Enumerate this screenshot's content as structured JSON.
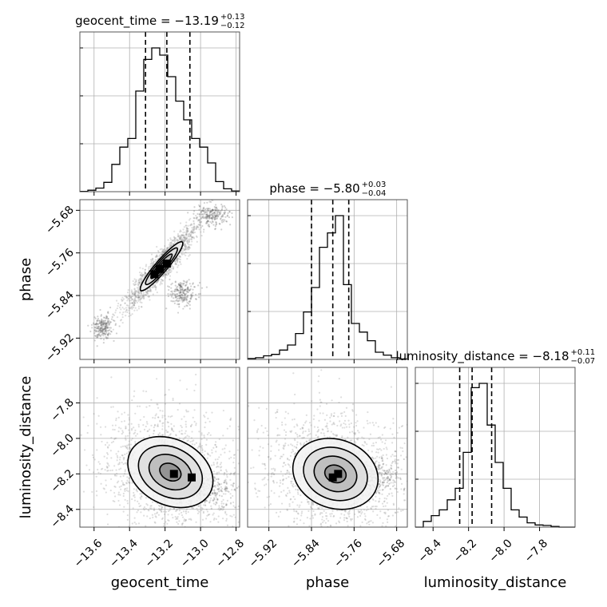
{
  "chart_data": [
    {
      "type": "histogram",
      "id": "geocent_time_hist",
      "parameter": "geocent_time",
      "title_label": "geocent_time = −13.19",
      "title_sup": "+0.13",
      "title_sub": "−0.12",
      "xlim": [
        -13.68,
        -12.78
      ],
      "median": -13.19,
      "quantiles": [
        -13.31,
        -13.06
      ],
      "bin_edges": [
        -13.68,
        -13.635,
        -13.59,
        -13.545,
        -13.5,
        -13.455,
        -13.41,
        -13.365,
        -13.32,
        -13.275,
        -13.23,
        -13.185,
        -13.14,
        -13.095,
        -13.05,
        -13.005,
        -12.96,
        -12.915,
        -12.87,
        -12.825,
        -12.78
      ],
      "counts": [
        0.2,
        1.0,
        2.5,
        6.5,
        19,
        31,
        37,
        70,
        92,
        100,
        95,
        80,
        63,
        50,
        37,
        31,
        20,
        7,
        2,
        0.5
      ]
    },
    {
      "type": "histogram",
      "id": "phase_hist",
      "parameter": "phase",
      "title_label": "phase = −5.80",
      "title_sup": "+0.03",
      "title_sub": "−0.04",
      "xlim": [
        -5.96,
        -5.66
      ],
      "median": -5.8,
      "quantiles": [
        -5.84,
        -5.77
      ],
      "bin_edges": [
        -5.96,
        -5.945,
        -5.93,
        -5.915,
        -5.9,
        -5.885,
        -5.87,
        -5.855,
        -5.84,
        -5.825,
        -5.81,
        -5.795,
        -5.78,
        -5.765,
        -5.75,
        -5.735,
        -5.72,
        -5.705,
        -5.69,
        -5.675,
        -5.66
      ],
      "counts": [
        0.6,
        1.2,
        2.5,
        3.5,
        6.5,
        10,
        18,
        33,
        50,
        78,
        88,
        100,
        52,
        25,
        19,
        13,
        5,
        3,
        1.2,
        0.3
      ]
    },
    {
      "type": "histogram",
      "id": "luminosity_distance_hist",
      "parameter": "luminosity_distance",
      "title_label": "luminosity_distance = −8.18",
      "title_sup": "+0.11",
      "title_sub": "−0.07",
      "xlim": [
        -8.5,
        -7.6
      ],
      "median": -8.18,
      "quantiles": [
        -8.25,
        -8.07
      ],
      "bin_edges": [
        -8.5,
        -8.455,
        -8.41,
        -8.365,
        -8.32,
        -8.275,
        -8.23,
        -8.185,
        -8.14,
        -8.095,
        -8.05,
        -8.005,
        -7.96,
        -7.915,
        -7.87,
        -7.825,
        -7.78,
        -7.735,
        -7.69,
        -7.645,
        -7.6
      ],
      "counts": [
        0,
        4,
        8,
        12,
        19,
        27,
        52,
        97,
        100,
        71,
        45,
        27,
        12,
        7,
        3,
        1.5,
        1.2,
        0.5,
        0,
        0
      ]
    },
    {
      "type": "2d_density",
      "id": "phase_vs_geocent_time",
      "x_param": "geocent_time",
      "y_param": "phase",
      "xlim": [
        -13.68,
        -12.78
      ],
      "ylim": [
        -5.96,
        -5.66
      ],
      "center": [
        -13.22,
        -5.785
      ],
      "sigma": [
        0.06,
        0.023
      ],
      "rho": 0.93,
      "peak_cells": [
        [
          -13.26,
          -5.8
        ],
        [
          -13.23,
          -5.79
        ],
        [
          -13.19,
          -5.78
        ]
      ],
      "tail_clouds": [
        [
          -12.93,
          -5.69,
          0.05,
          0.01
        ],
        [
          -13.1,
          -5.835,
          0.04,
          0.012
        ],
        [
          -13.55,
          -5.9,
          0.03,
          0.012
        ]
      ],
      "contour_levels_sigma": [
        0.5,
        1.0,
        1.5,
        2.0
      ]
    },
    {
      "type": "2d_density",
      "id": "luminosity_distance_vs_geocent_time",
      "x_param": "geocent_time",
      "y_param": "luminosity_distance",
      "xlim": [
        -13.68,
        -12.78
      ],
      "ylim": [
        -8.5,
        -7.6
      ],
      "center": [
        -13.17,
        -8.19
      ],
      "sigma": [
        0.12,
        0.1
      ],
      "rho": -0.25,
      "peak_cells": [
        [
          -13.15,
          -8.2
        ],
        [
          -13.05,
          -8.22
        ]
      ],
      "tail_clouds": [
        [
          -12.98,
          -8.28,
          0.08,
          0.05
        ]
      ],
      "contour_levels_sigma": [
        0.5,
        1.0,
        1.5,
        2.0
      ]
    },
    {
      "type": "2d_density",
      "id": "luminosity_distance_vs_phase",
      "x_param": "phase",
      "y_param": "luminosity_distance",
      "xlim": [
        -5.96,
        -5.66
      ],
      "ylim": [
        -8.5,
        -7.6
      ],
      "center": [
        -5.795,
        -8.2
      ],
      "sigma": [
        0.04,
        0.1
      ],
      "rho": -0.15,
      "peak_cells": [
        [
          -5.8,
          -8.22
        ],
        [
          -5.79,
          -8.2
        ]
      ],
      "tail_clouds": [
        [
          -5.72,
          -8.22,
          0.03,
          0.05
        ]
      ],
      "contour_levels_sigma": [
        0.5,
        1.0,
        1.5,
        2.0
      ]
    }
  ],
  "axes": {
    "geocent_time": {
      "label": "geocent_time",
      "ticks": [
        -13.6,
        -13.4,
        -13.2,
        -13.0,
        -12.8
      ],
      "tick_labels": [
        "−13.6",
        "−13.4",
        "−13.2",
        "−13.0",
        "−12.8"
      ]
    },
    "phase": {
      "label": "phase",
      "ticks": [
        -5.92,
        -5.84,
        -5.76,
        -5.68
      ],
      "tick_labels": [
        "−5.92",
        "−5.84",
        "−5.76",
        "−5.68"
      ]
    },
    "luminosity_distance": {
      "label": "luminosity_distance",
      "ticks": [
        -8.4,
        -8.2,
        -8.0,
        -7.8
      ],
      "tick_labels": [
        "−8.4",
        "−8.2",
        "−8.0",
        "−7.8"
      ]
    }
  },
  "colors": {
    "histogram": "#000000",
    "median_line": "#000000",
    "density_dark": "#000000",
    "grid": "#b0b0b0"
  },
  "grid": true
}
